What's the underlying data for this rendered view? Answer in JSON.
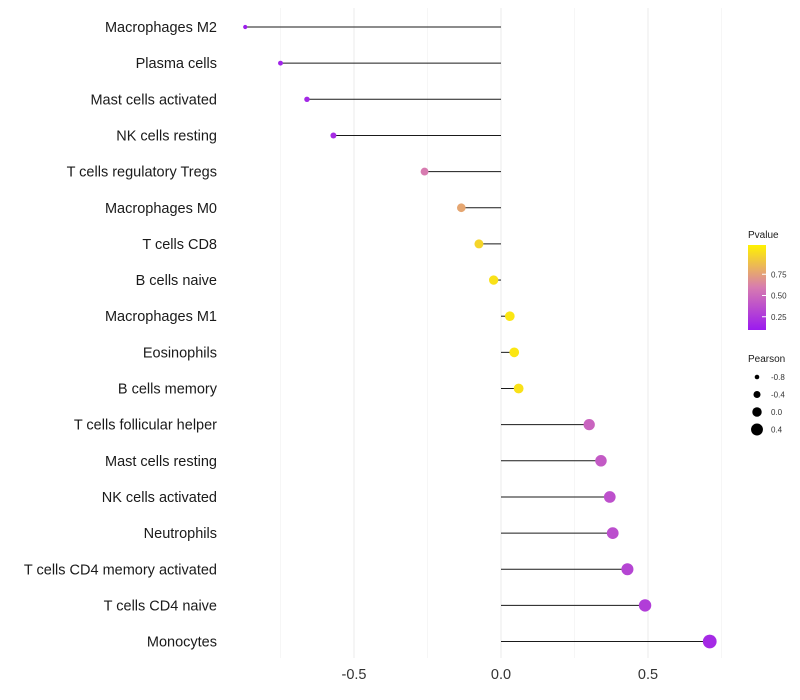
{
  "chart_data": {
    "type": "lollipop",
    "categories": [
      "Macrophages M2",
      "Plasma cells",
      "Mast cells activated",
      "NK cells resting",
      "T cells regulatory  Tregs",
      "Macrophages M0",
      "T cells CD8",
      "B cells naive",
      "Macrophages M1",
      "Eosinophils",
      "B cells memory",
      "T cells follicular helper",
      "Mast cells resting",
      "NK cells activated",
      "Neutrophils",
      "T cells CD4 memory activated",
      "T cells CD4 naive",
      "Monocytes"
    ],
    "values": [
      -0.87,
      -0.75,
      -0.66,
      -0.57,
      -0.26,
      -0.135,
      -0.075,
      -0.025,
      0.03,
      0.045,
      0.06,
      0.3,
      0.34,
      0.37,
      0.38,
      0.43,
      0.49,
      0.71
    ],
    "pvalues": [
      0.02,
      0.05,
      0.07,
      0.09,
      0.5,
      0.68,
      0.88,
      0.93,
      0.95,
      0.95,
      0.93,
      0.38,
      0.33,
      0.28,
      0.27,
      0.22,
      0.18,
      0.08
    ],
    "xticks": [
      -0.5,
      0.0,
      0.5
    ],
    "xtick_labels": [
      "-0.5",
      "0.0",
      "0.5"
    ],
    "xlim": [
      -0.9,
      0.75
    ],
    "xlabel": "",
    "ylabel": "",
    "grid": true,
    "legend": {
      "color_title": "Pvalue",
      "color_ticks": [
        0.25,
        0.5,
        0.75
      ],
      "color_tick_labels": [
        "0.25",
        "0.50",
        "0.75"
      ],
      "color_low": "#9b1aef",
      "color_mid": "#d77bb0",
      "color_high": "#fff200",
      "size_title": "Pearson",
      "size_values": [
        -0.8,
        -0.4,
        0.0,
        0.4
      ],
      "size_labels": [
        "-0.8",
        "-0.4",
        "0.0",
        "0.4"
      ],
      "position": "right"
    }
  }
}
